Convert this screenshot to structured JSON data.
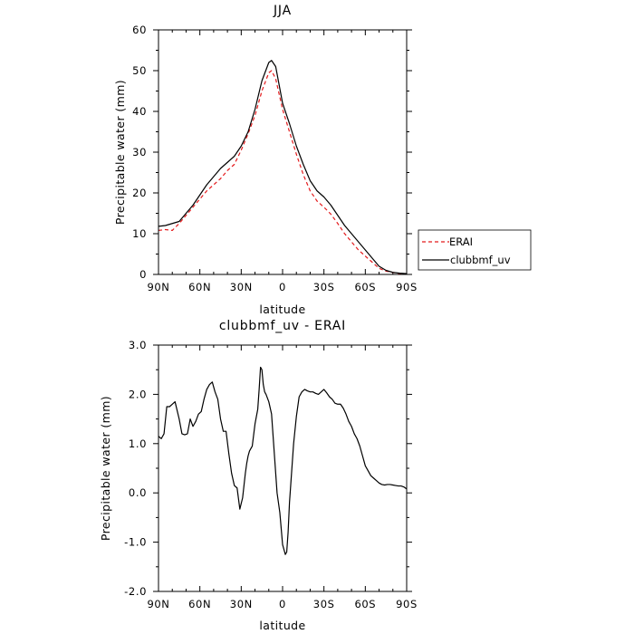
{
  "chart_data": [
    {
      "type": "line",
      "title": "JJA",
      "xlabel": "latitude",
      "ylabel": "Precipitable water (mm)",
      "xlim": [
        90,
        -90
      ],
      "ylim": [
        0,
        60
      ],
      "x_ticks": [
        90,
        60,
        30,
        0,
        -30,
        -60,
        -90
      ],
      "x_tick_labels": [
        "90N",
        "60N",
        "30N",
        "0",
        "30S",
        "60S",
        "90S"
      ],
      "y_ticks": [
        0,
        10,
        20,
        30,
        40,
        50,
        60
      ],
      "y_tick_labels": [
        "0",
        "10",
        "20",
        "30",
        "40",
        "50",
        "60"
      ],
      "grid": false,
      "legend": {
        "placement": "outside-right"
      },
      "series": [
        {
          "name": "ERAI",
          "color": "#e41a1c",
          "dash": "dashed",
          "x": [
            90,
            85,
            80,
            75,
            70,
            65,
            60,
            55,
            50,
            45,
            40,
            35,
            30,
            25,
            20,
            15,
            10,
            8,
            5,
            0,
            -5,
            -10,
            -15,
            -20,
            -25,
            -30,
            -35,
            -40,
            -45,
            -50,
            -55,
            -60,
            -65,
            -70,
            -75,
            -80,
            -85,
            -90
          ],
          "y": [
            10.8,
            11.0,
            10.8,
            12.5,
            14.5,
            16.5,
            18.5,
            20.5,
            22.0,
            23.5,
            25.5,
            27.0,
            30.5,
            34.5,
            39.0,
            45.0,
            49.5,
            50.0,
            48.0,
            40.5,
            35.0,
            29.5,
            24.5,
            20.5,
            18.0,
            16.5,
            14.8,
            12.5,
            10.0,
            8.0,
            6.0,
            4.5,
            3.0,
            1.5,
            0.8,
            0.5,
            0.2,
            0.1
          ]
        },
        {
          "name": "clubbmf_uv",
          "color": "#000000",
          "dash": "solid",
          "x": [
            90,
            85,
            80,
            75,
            70,
            65,
            60,
            55,
            50,
            45,
            40,
            35,
            30,
            25,
            20,
            15,
            10,
            8,
            5,
            0,
            -5,
            -10,
            -15,
            -20,
            -25,
            -30,
            -35,
            -40,
            -45,
            -50,
            -55,
            -60,
            -65,
            -70,
            -75,
            -80,
            -85,
            -90
          ],
          "y": [
            11.8,
            12.0,
            12.5,
            13.0,
            15.0,
            17.0,
            19.5,
            22.0,
            24.0,
            26.0,
            27.5,
            29.0,
            31.5,
            35.0,
            40.5,
            47.5,
            52.0,
            52.5,
            51.0,
            42.0,
            37.0,
            31.5,
            27.0,
            23.0,
            20.5,
            19.0,
            17.0,
            14.5,
            12.0,
            10.0,
            8.0,
            6.0,
            4.0,
            2.0,
            1.0,
            0.5,
            0.3,
            0.2
          ]
        }
      ]
    },
    {
      "type": "line",
      "title": "clubbmf_uv - ERAI",
      "xlabel": "latitude",
      "ylabel": "Precipitable water (mm)",
      "xlim": [
        90,
        -90
      ],
      "ylim": [
        -2.0,
        3.0
      ],
      "x_ticks": [
        90,
        60,
        30,
        0,
        -30,
        -60,
        -90
      ],
      "x_tick_labels": [
        "90N",
        "60N",
        "30N",
        "0",
        "30S",
        "60S",
        "90S"
      ],
      "y_ticks": [
        -2.0,
        -1.0,
        0.0,
        1.0,
        2.0,
        3.0
      ],
      "y_tick_labels": [
        "-2.0",
        "-1.0",
        "0.0",
        "1.0",
        "2.0",
        "3.0"
      ],
      "grid": false,
      "series": [
        {
          "color": "#000000",
          "dash": "solid",
          "x": [
            90,
            88,
            86,
            84,
            82,
            80,
            78,
            75,
            73,
            71,
            69,
            67,
            65,
            63,
            61,
            59,
            57,
            55,
            53,
            51,
            49,
            47,
            45,
            43,
            41,
            39,
            37,
            35,
            33,
            31,
            29,
            28,
            27,
            26,
            25,
            24,
            22,
            20,
            18,
            17,
            16,
            15,
            14,
            13,
            12,
            10,
            8,
            6,
            4,
            2,
            0,
            -2,
            -3,
            -4,
            -5,
            -6,
            -8,
            -10,
            -12,
            -14,
            -16,
            -18,
            -20,
            -22,
            -24,
            -26,
            -28,
            -30,
            -32,
            -34,
            -36,
            -38,
            -40,
            -42,
            -44,
            -46,
            -48,
            -50,
            -52,
            -54,
            -56,
            -58,
            -60,
            -62,
            -64,
            -66,
            -68,
            -70,
            -72,
            -74,
            -76,
            -78,
            -80,
            -82,
            -84,
            -86,
            -88,
            -90
          ],
          "y": [
            1.15,
            1.1,
            1.2,
            1.75,
            1.75,
            1.8,
            1.85,
            1.5,
            1.2,
            1.18,
            1.2,
            1.5,
            1.35,
            1.45,
            1.6,
            1.65,
            1.9,
            2.1,
            2.2,
            2.25,
            2.05,
            1.9,
            1.5,
            1.25,
            1.25,
            0.8,
            0.4,
            0.15,
            0.1,
            -0.33,
            -0.1,
            0.15,
            0.4,
            0.6,
            0.75,
            0.85,
            0.95,
            1.4,
            1.7,
            2.1,
            2.55,
            2.5,
            2.2,
            2.05,
            2.0,
            1.85,
            1.6,
            0.8,
            0.0,
            -0.4,
            -1.05,
            -1.25,
            -1.2,
            -0.8,
            -0.2,
            0.2,
            1.0,
            1.55,
            1.95,
            2.05,
            2.1,
            2.07,
            2.05,
            2.05,
            2.02,
            2.0,
            2.05,
            2.1,
            2.03,
            1.95,
            1.9,
            1.82,
            1.8,
            1.8,
            1.72,
            1.6,
            1.45,
            1.35,
            1.2,
            1.1,
            0.95,
            0.75,
            0.55,
            0.45,
            0.35,
            0.3,
            0.25,
            0.2,
            0.17,
            0.16,
            0.17,
            0.17,
            0.16,
            0.15,
            0.14,
            0.14,
            0.12,
            0.08
          ]
        }
      ]
    }
  ]
}
